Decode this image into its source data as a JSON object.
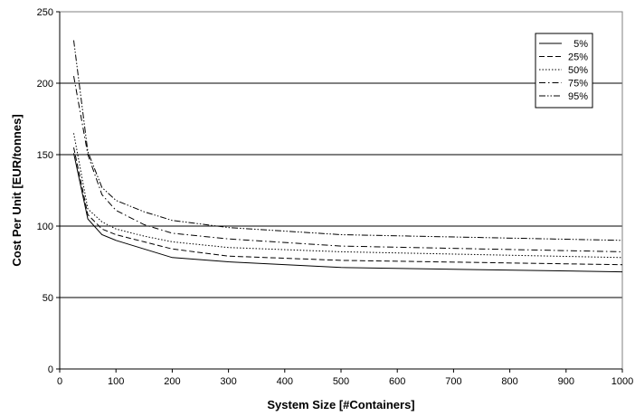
{
  "chart_data": {
    "type": "line",
    "title": "",
    "xlabel": "System Size [#Containers]",
    "ylabel": "Cost Per Unit [EUR/tonnes]",
    "xlim": [
      0,
      1000
    ],
    "ylim": [
      0,
      250
    ],
    "x_ticks": [
      0,
      100,
      200,
      300,
      400,
      500,
      600,
      700,
      800,
      900,
      1000
    ],
    "y_ticks": [
      0,
      50,
      100,
      150,
      200,
      250
    ],
    "grid": "horizontal",
    "legend_position": "top-right",
    "x": [
      25,
      50,
      75,
      100,
      150,
      200,
      300,
      500,
      1000
    ],
    "series": [
      {
        "name": "5%",
        "dash": "solid",
        "values": [
          151,
          105,
          94,
          90,
          84,
          78,
          75,
          71,
          68
        ]
      },
      {
        "name": "25%",
        "dash": "dashed",
        "values": [
          155,
          108,
          98,
          94,
          89,
          84,
          79,
          76,
          73
        ]
      },
      {
        "name": "50%",
        "dash": "dotted",
        "values": [
          165,
          112,
          103,
          98,
          93,
          89,
          85,
          82,
          78
        ]
      },
      {
        "name": "75%",
        "dash": "dash-dot",
        "values": [
          205,
          150,
          122,
          111,
          101,
          95,
          91,
          86,
          82
        ]
      },
      {
        "name": "95%",
        "dash": "dash-dot-dot",
        "values": [
          230,
          152,
          127,
          118,
          110,
          104,
          99,
          94,
          90
        ]
      }
    ]
  }
}
